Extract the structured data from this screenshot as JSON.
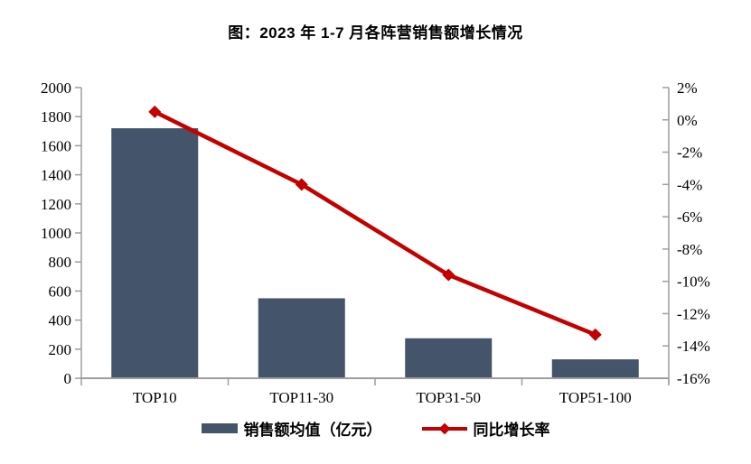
{
  "title": "图：2023 年 1-7 月各阵营销售额增长情况",
  "colors": {
    "bar": "#44546A",
    "line": "#C40000",
    "axis": "#9E9E9E",
    "label": "#000000"
  },
  "chart_data": {
    "type": "combo-bar-line",
    "title": "图：2023 年 1-7 月各阵营销售额增长情况",
    "categories": [
      "TOP10",
      "TOP11-30",
      "TOP31-50",
      "TOP51-100"
    ],
    "series": [
      {
        "name": "销售额均值（亿元）",
        "chart_type": "bar",
        "axis": "left",
        "values": [
          1720,
          550,
          275,
          130
        ]
      },
      {
        "name": "同比增长率",
        "chart_type": "line",
        "axis": "right",
        "unit": "%",
        "values": [
          0.5,
          -4.0,
          -9.6,
          -13.3
        ]
      }
    ],
    "left_axis": {
      "min": 0,
      "max": 2000,
      "step": 200,
      "tick_labels": [
        "0",
        "200",
        "400",
        "600",
        "800",
        "1000",
        "1200",
        "1400",
        "1600",
        "1800",
        "2000"
      ]
    },
    "right_axis": {
      "min": -16,
      "max": 2,
      "step": 2,
      "tick_labels": [
        "-16%",
        "-14%",
        "-12%",
        "-10%",
        "-8%",
        "-6%",
        "-4%",
        "-2%",
        "0%",
        "2%"
      ]
    },
    "legend_position": "bottom",
    "grid": false
  }
}
